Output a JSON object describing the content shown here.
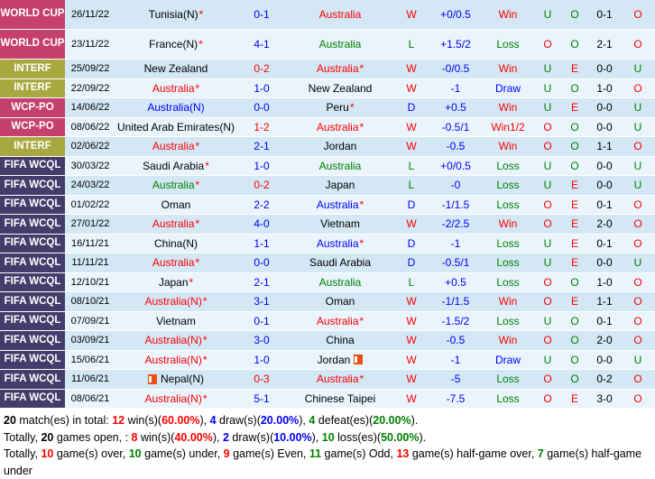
{
  "colors": {
    "text": {
      "red": "#fe0000",
      "blue": "#0000fe",
      "green": "#008000",
      "black": "#000000"
    },
    "row_odd": "#d3e7f5",
    "row_even": "#e9f4fc",
    "flag_icon": "#e8500f"
  },
  "table": {
    "badge_colors": {
      "WORLD CUP": "#c5406f",
      "INTERF": "#a7a840",
      "WCP-PO": "#c5406f",
      "FIFA WCQL": "#443c6a"
    },
    "rows": [
      {
        "comp": "WORLD CUP",
        "tall": true,
        "date": "26/11/22",
        "home": {
          "name": "Tunisia(N)",
          "star": true,
          "color": "black"
        },
        "score": "0-1",
        "score_color": "blue",
        "away": {
          "name": "Australia",
          "star": false,
          "color": "red"
        },
        "wdl": "W",
        "wdl_color": "red",
        "handicap": "+0/0.5",
        "result": "Win",
        "result_color": "red",
        "uo": "U",
        "uo_color": "green",
        "oe": "O",
        "oe_color": "green",
        "ht": "0-1",
        "ou": "O",
        "ou_color": "red"
      },
      {
        "comp": "WORLD CUP",
        "tall": true,
        "date": "23/11/22",
        "home": {
          "name": "France(N)",
          "star": true,
          "color": "black"
        },
        "score": "4-1",
        "score_color": "blue",
        "away": {
          "name": "Australia",
          "star": false,
          "color": "green"
        },
        "wdl": "L",
        "wdl_color": "green",
        "handicap": "+1.5/2",
        "result": "Loss",
        "result_color": "green",
        "uo": "O",
        "uo_color": "red",
        "oe": "O",
        "oe_color": "green",
        "ht": "2-1",
        "ou": "O",
        "ou_color": "red"
      },
      {
        "comp": "INTERF",
        "tall": false,
        "date": "25/09/22",
        "home": {
          "name": "New Zealand",
          "star": false,
          "color": "black"
        },
        "score": "0-2",
        "score_color": "red",
        "away": {
          "name": "Australia",
          "star": true,
          "color": "red"
        },
        "wdl": "W",
        "wdl_color": "red",
        "handicap": "-0/0.5",
        "result": "Win",
        "result_color": "red",
        "uo": "U",
        "uo_color": "green",
        "oe": "E",
        "oe_color": "red",
        "ht": "0-0",
        "ou": "U",
        "ou_color": "green"
      },
      {
        "comp": "INTERF",
        "tall": false,
        "date": "22/09/22",
        "home": {
          "name": "Australia",
          "star": true,
          "color": "red"
        },
        "score": "1-0",
        "score_color": "blue",
        "away": {
          "name": "New Zealand",
          "star": false,
          "color": "black"
        },
        "wdl": "W",
        "wdl_color": "red",
        "handicap": "-1",
        "result": "Draw",
        "result_color": "blue",
        "uo": "U",
        "uo_color": "green",
        "oe": "O",
        "oe_color": "green",
        "ht": "1-0",
        "ou": "O",
        "ou_color": "red"
      },
      {
        "comp": "WCP-PO",
        "tall": false,
        "date": "14/06/22",
        "home": {
          "name": "Australia(N)",
          "star": false,
          "color": "blue"
        },
        "score": "0-0",
        "score_color": "blue",
        "away": {
          "name": "Peru",
          "star": true,
          "color": "black"
        },
        "wdl": "D",
        "wdl_color": "blue",
        "handicap": "+0.5",
        "result": "Win",
        "result_color": "red",
        "uo": "U",
        "uo_color": "green",
        "oe": "E",
        "oe_color": "red",
        "ht": "0-0",
        "ou": "U",
        "ou_color": "green"
      },
      {
        "comp": "WCP-PO",
        "tall": false,
        "date": "08/06/22",
        "home": {
          "name": "United Arab Emirates(N)",
          "star": false,
          "color": "black"
        },
        "score": "1-2",
        "score_color": "red",
        "away": {
          "name": "Australia",
          "star": true,
          "color": "red"
        },
        "wdl": "W",
        "wdl_color": "red",
        "handicap": "-0.5/1",
        "result": "Win1/2",
        "result_color": "red",
        "uo": "O",
        "uo_color": "red",
        "oe": "O",
        "oe_color": "green",
        "ht": "0-0",
        "ou": "U",
        "ou_color": "green"
      },
      {
        "comp": "INTERF",
        "tall": false,
        "date": "02/06/22",
        "home": {
          "name": "Australia",
          "star": true,
          "color": "red"
        },
        "score": "2-1",
        "score_color": "blue",
        "away": {
          "name": "Jordan",
          "star": false,
          "color": "black"
        },
        "wdl": "W",
        "wdl_color": "red",
        "handicap": "-0.5",
        "result": "Win",
        "result_color": "red",
        "uo": "O",
        "uo_color": "red",
        "oe": "O",
        "oe_color": "green",
        "ht": "1-1",
        "ou": "O",
        "ou_color": "red"
      },
      {
        "comp": "FIFA WCQL",
        "tall": false,
        "date": "30/03/22",
        "home": {
          "name": "Saudi Arabia",
          "star": true,
          "color": "black"
        },
        "score": "1-0",
        "score_color": "blue",
        "away": {
          "name": "Australia",
          "star": false,
          "color": "green"
        },
        "wdl": "L",
        "wdl_color": "green",
        "handicap": "+0/0.5",
        "result": "Loss",
        "result_color": "green",
        "uo": "U",
        "uo_color": "green",
        "oe": "O",
        "oe_color": "green",
        "ht": "0-0",
        "ou": "U",
        "ou_color": "green"
      },
      {
        "comp": "FIFA WCQL",
        "tall": false,
        "date": "24/03/22",
        "home": {
          "name": "Australia",
          "star": true,
          "color": "green"
        },
        "score": "0-2",
        "score_color": "red",
        "away": {
          "name": "Japan",
          "star": false,
          "color": "black"
        },
        "wdl": "L",
        "wdl_color": "green",
        "handicap": "-0",
        "result": "Loss",
        "result_color": "green",
        "uo": "U",
        "uo_color": "green",
        "oe": "E",
        "oe_color": "red",
        "ht": "0-0",
        "ou": "U",
        "ou_color": "green"
      },
      {
        "comp": "FIFA WCQL",
        "tall": false,
        "date": "01/02/22",
        "home": {
          "name": "Oman",
          "star": false,
          "color": "black"
        },
        "score": "2-2",
        "score_color": "blue",
        "away": {
          "name": "Australia",
          "star": true,
          "color": "blue"
        },
        "wdl": "D",
        "wdl_color": "blue",
        "handicap": "-1/1.5",
        "result": "Loss",
        "result_color": "green",
        "uo": "O",
        "uo_color": "red",
        "oe": "E",
        "oe_color": "red",
        "ht": "0-1",
        "ou": "O",
        "ou_color": "red"
      },
      {
        "comp": "FIFA WCQL",
        "tall": false,
        "date": "27/01/22",
        "home": {
          "name": "Australia",
          "star": true,
          "color": "red"
        },
        "score": "4-0",
        "score_color": "blue",
        "away": {
          "name": "Vietnam",
          "star": false,
          "color": "black"
        },
        "wdl": "W",
        "wdl_color": "red",
        "handicap": "-2/2.5",
        "result": "Win",
        "result_color": "red",
        "uo": "O",
        "uo_color": "red",
        "oe": "E",
        "oe_color": "red",
        "ht": "2-0",
        "ou": "O",
        "ou_color": "red"
      },
      {
        "comp": "FIFA WCQL",
        "tall": false,
        "date": "16/11/21",
        "home": {
          "name": "China(N)",
          "star": false,
          "color": "black"
        },
        "score": "1-1",
        "score_color": "blue",
        "away": {
          "name": "Australia",
          "star": true,
          "color": "blue"
        },
        "wdl": "D",
        "wdl_color": "blue",
        "handicap": "-1",
        "result": "Loss",
        "result_color": "green",
        "uo": "U",
        "uo_color": "green",
        "oe": "E",
        "oe_color": "red",
        "ht": "0-1",
        "ou": "O",
        "ou_color": "red"
      },
      {
        "comp": "FIFA WCQL",
        "tall": false,
        "date": "11/11/21",
        "home": {
          "name": "Australia",
          "star": true,
          "color": "red"
        },
        "score": "0-0",
        "score_color": "blue",
        "away": {
          "name": "Saudi Arabia",
          "star": false,
          "color": "black"
        },
        "wdl": "D",
        "wdl_color": "blue",
        "handicap": "-0.5/1",
        "result": "Loss",
        "result_color": "green",
        "uo": "U",
        "uo_color": "green",
        "oe": "E",
        "oe_color": "red",
        "ht": "0-0",
        "ou": "U",
        "ou_color": "green"
      },
      {
        "comp": "FIFA WCQL",
        "tall": false,
        "date": "12/10/21",
        "home": {
          "name": "Japan",
          "star": true,
          "color": "black"
        },
        "score": "2-1",
        "score_color": "blue",
        "away": {
          "name": "Australia",
          "star": false,
          "color": "green"
        },
        "wdl": "L",
        "wdl_color": "green",
        "handicap": "+0.5",
        "result": "Loss",
        "result_color": "green",
        "uo": "O",
        "uo_color": "red",
        "oe": "O",
        "oe_color": "green",
        "ht": "1-0",
        "ou": "O",
        "ou_color": "red"
      },
      {
        "comp": "FIFA WCQL",
        "tall": false,
        "date": "08/10/21",
        "home": {
          "name": "Australia(N)",
          "star": true,
          "color": "red"
        },
        "score": "3-1",
        "score_color": "blue",
        "away": {
          "name": "Oman",
          "star": false,
          "color": "black"
        },
        "wdl": "W",
        "wdl_color": "red",
        "handicap": "-1/1.5",
        "result": "Win",
        "result_color": "red",
        "uo": "O",
        "uo_color": "red",
        "oe": "E",
        "oe_color": "red",
        "ht": "1-1",
        "ou": "O",
        "ou_color": "red"
      },
      {
        "comp": "FIFA WCQL",
        "tall": false,
        "date": "07/09/21",
        "home": {
          "name": "Vietnam",
          "star": false,
          "color": "black"
        },
        "score": "0-1",
        "score_color": "blue",
        "away": {
          "name": "Australia",
          "star": true,
          "color": "red"
        },
        "wdl": "W",
        "wdl_color": "red",
        "handicap": "-1.5/2",
        "result": "Loss",
        "result_color": "green",
        "uo": "U",
        "uo_color": "green",
        "oe": "O",
        "oe_color": "green",
        "ht": "0-1",
        "ou": "O",
        "ou_color": "red"
      },
      {
        "comp": "FIFA WCQL",
        "tall": false,
        "date": "03/09/21",
        "home": {
          "name": "Australia(N)",
          "star": true,
          "color": "red"
        },
        "score": "3-0",
        "score_color": "blue",
        "away": {
          "name": "China",
          "star": false,
          "color": "black"
        },
        "wdl": "W",
        "wdl_color": "red",
        "handicap": "-0.5",
        "result": "Win",
        "result_color": "red",
        "uo": "O",
        "uo_color": "red",
        "oe": "O",
        "oe_color": "green",
        "ht": "2-0",
        "ou": "O",
        "ou_color": "red"
      },
      {
        "comp": "FIFA WCQL",
        "tall": false,
        "date": "15/06/21",
        "home": {
          "name": "Australia(N)",
          "star": true,
          "color": "red"
        },
        "score": "1-0",
        "score_color": "blue",
        "away": {
          "name": "Jordan",
          "star": false,
          "color": "black",
          "icon": "after"
        },
        "wdl": "W",
        "wdl_color": "red",
        "handicap": "-1",
        "result": "Draw",
        "result_color": "blue",
        "uo": "U",
        "uo_color": "green",
        "oe": "O",
        "oe_color": "green",
        "ht": "0-0",
        "ou": "U",
        "ou_color": "green"
      },
      {
        "comp": "FIFA WCQL",
        "tall": false,
        "date": "11/06/21",
        "home": {
          "name": "Nepal(N)",
          "star": false,
          "color": "black",
          "icon": "before"
        },
        "score": "0-3",
        "score_color": "red",
        "away": {
          "name": "Australia",
          "star": true,
          "color": "red"
        },
        "wdl": "W",
        "wdl_color": "red",
        "handicap": "-5",
        "result": "Loss",
        "result_color": "green",
        "uo": "O",
        "uo_color": "red",
        "oe": "O",
        "oe_color": "green",
        "ht": "0-2",
        "ou": "O",
        "ou_color": "red"
      },
      {
        "comp": "FIFA WCQL",
        "tall": false,
        "date": "08/06/21",
        "home": {
          "name": "Australia(N)",
          "star": true,
          "color": "red"
        },
        "score": "5-1",
        "score_color": "blue",
        "away": {
          "name": "Chinese Taipei",
          "star": false,
          "color": "black"
        },
        "wdl": "W",
        "wdl_color": "red",
        "handicap": "-7.5",
        "result": "Loss",
        "result_color": "green",
        "uo": "O",
        "uo_color": "red",
        "oe": "E",
        "oe_color": "red",
        "ht": "3-0",
        "ou": "O",
        "ou_color": "red"
      }
    ]
  },
  "summary": {
    "lines": [
      [
        {
          "t": "20",
          "b": true
        },
        {
          "t": " match(es) in total: "
        },
        {
          "t": "12",
          "c": "red",
          "b": true
        },
        {
          "t": " win(s)("
        },
        {
          "t": "60.00%",
          "c": "red",
          "b": true
        },
        {
          "t": "), "
        },
        {
          "t": "4",
          "c": "blue",
          "b": true
        },
        {
          "t": " draw(s)("
        },
        {
          "t": "20.00%",
          "c": "blue",
          "b": true
        },
        {
          "t": "), "
        },
        {
          "t": "4",
          "c": "green",
          "b": true
        },
        {
          "t": " defeat(es)("
        },
        {
          "t": "20.00%",
          "c": "green",
          "b": true
        },
        {
          "t": ")."
        }
      ],
      [
        {
          "t": "Totally, "
        },
        {
          "t": "20",
          "b": true
        },
        {
          "t": " games open, : "
        },
        {
          "t": "8",
          "c": "red",
          "b": true
        },
        {
          "t": " win(s)("
        },
        {
          "t": "40.00%",
          "c": "red",
          "b": true
        },
        {
          "t": "), "
        },
        {
          "t": "2",
          "c": "blue",
          "b": true
        },
        {
          "t": " draw(s)("
        },
        {
          "t": "10.00%",
          "c": "blue",
          "b": true
        },
        {
          "t": "), "
        },
        {
          "t": "10",
          "c": "green",
          "b": true
        },
        {
          "t": " loss(es)("
        },
        {
          "t": "50.00%",
          "c": "green",
          "b": true
        },
        {
          "t": ")."
        }
      ],
      [
        {
          "t": "Totally, "
        },
        {
          "t": "10",
          "c": "red",
          "b": true
        },
        {
          "t": " game(s) over, "
        },
        {
          "t": "10",
          "c": "green",
          "b": true
        },
        {
          "t": " game(s) under, "
        },
        {
          "t": "9",
          "c": "red",
          "b": true
        },
        {
          "t": " game(s) Even, "
        },
        {
          "t": "11",
          "c": "green",
          "b": true
        },
        {
          "t": " game(s) Odd, "
        },
        {
          "t": "13",
          "c": "red",
          "b": true
        },
        {
          "t": " game(s) half-game over, "
        },
        {
          "t": "7",
          "c": "green",
          "b": true
        },
        {
          "t": " game(s) half-game under"
        }
      ]
    ]
  }
}
